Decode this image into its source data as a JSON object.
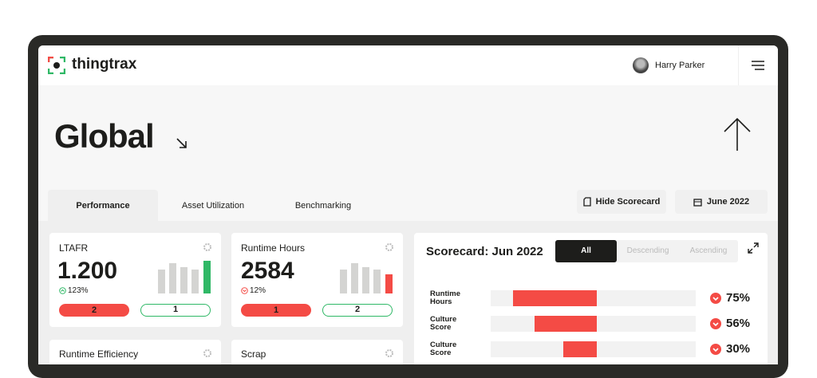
{
  "header": {
    "brand": "thingtrax",
    "user": "Harry Parker"
  },
  "page": {
    "title": "Global"
  },
  "tabs": [
    "Performance",
    "Asset Utilization",
    "Benchmarking"
  ],
  "actions": [
    "Hide Scorecard",
    "June 2022"
  ],
  "cards": [
    {
      "title": "LTAFR",
      "value": "1.200",
      "change": "123%",
      "badges": [
        "2",
        "1"
      ]
    },
    {
      "title": "Runtime Hours",
      "value": "2584",
      "change": "12%",
      "badges": [
        "1",
        "2"
      ]
    },
    {
      "title": "Runtime Efficiency"
    },
    {
      "title": "Scrap"
    }
  ],
  "scorecard": {
    "title": "Scorecard: Jun 2022",
    "filters": [
      "All",
      "Descending",
      "Ascending"
    ],
    "rows": [
      {
        "label": "Runtime Hours",
        "value": 75,
        "value_label": "75%"
      },
      {
        "label": "Culture Score",
        "value": 56,
        "value_label": "56%"
      },
      {
        "label": "Culture Score",
        "value": 30,
        "value_label": "30%"
      }
    ]
  }
}
